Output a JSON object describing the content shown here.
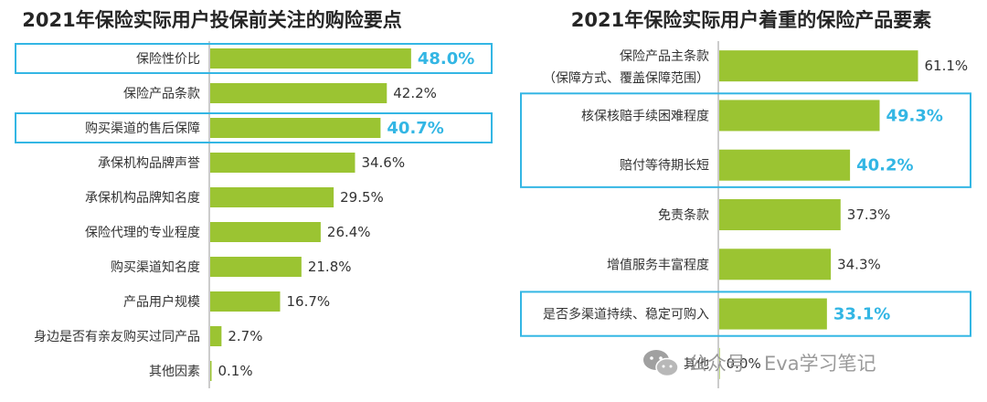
{
  "colors": {
    "bar": "#9BC432",
    "axis": "#999999",
    "highlight": "#33B6E4",
    "highlight_text": "#33B6E4"
  },
  "chart_data": [
    {
      "type": "bar",
      "orientation": "horizontal",
      "title": "2021年保险实际用户投保前关注的购险要点",
      "categories": [
        "保险性价比",
        "保险产品条款",
        "购买渠道的售后保障",
        "承保机构品牌声誉",
        "承保机构品牌知名度",
        "保险代理的专业程度",
        "购买渠道知名度",
        "产品用户规模",
        "身边是否有亲友购买过同产品",
        "其他因素"
      ],
      "values": [
        48.0,
        42.2,
        40.7,
        34.6,
        29.5,
        26.4,
        21.8,
        16.7,
        2.7,
        0.1
      ],
      "value_labels": [
        "48.0%",
        "42.2%",
        "40.7%",
        "34.6%",
        "29.5%",
        "26.4%",
        "21.8%",
        "16.7%",
        "2.7%",
        "0.1%"
      ],
      "highlighted": [
        0,
        2
      ],
      "unit": "%"
    },
    {
      "type": "bar",
      "orientation": "horizontal",
      "title": "2021年保险实际用户着重的保险产品要素",
      "categories": [
        [
          "保险产品主条款",
          "（保障方式、覆盖保障范围）"
        ],
        [
          "核保核赔手续困难程度"
        ],
        [
          "赔付等待期长短"
        ],
        [
          "免责条款"
        ],
        [
          "增值服务丰富程度"
        ],
        [
          "是否多渠道持续、稳定可购入"
        ],
        [
          "其他"
        ]
      ],
      "values": [
        61.1,
        49.3,
        40.2,
        37.3,
        34.3,
        33.1,
        0.0
      ],
      "value_labels": [
        "61.1%",
        "49.3%",
        "40.2%",
        "37.3%",
        "34.3%",
        "33.1%",
        "0.0%"
      ],
      "highlighted": [
        1,
        2,
        5
      ],
      "highlight_groups": [
        [
          1,
          2
        ],
        [
          5
        ]
      ],
      "unit": "%"
    }
  ],
  "watermark": {
    "text": "公众号 · Eva学习笔记",
    "icon": "wechat-icon"
  }
}
